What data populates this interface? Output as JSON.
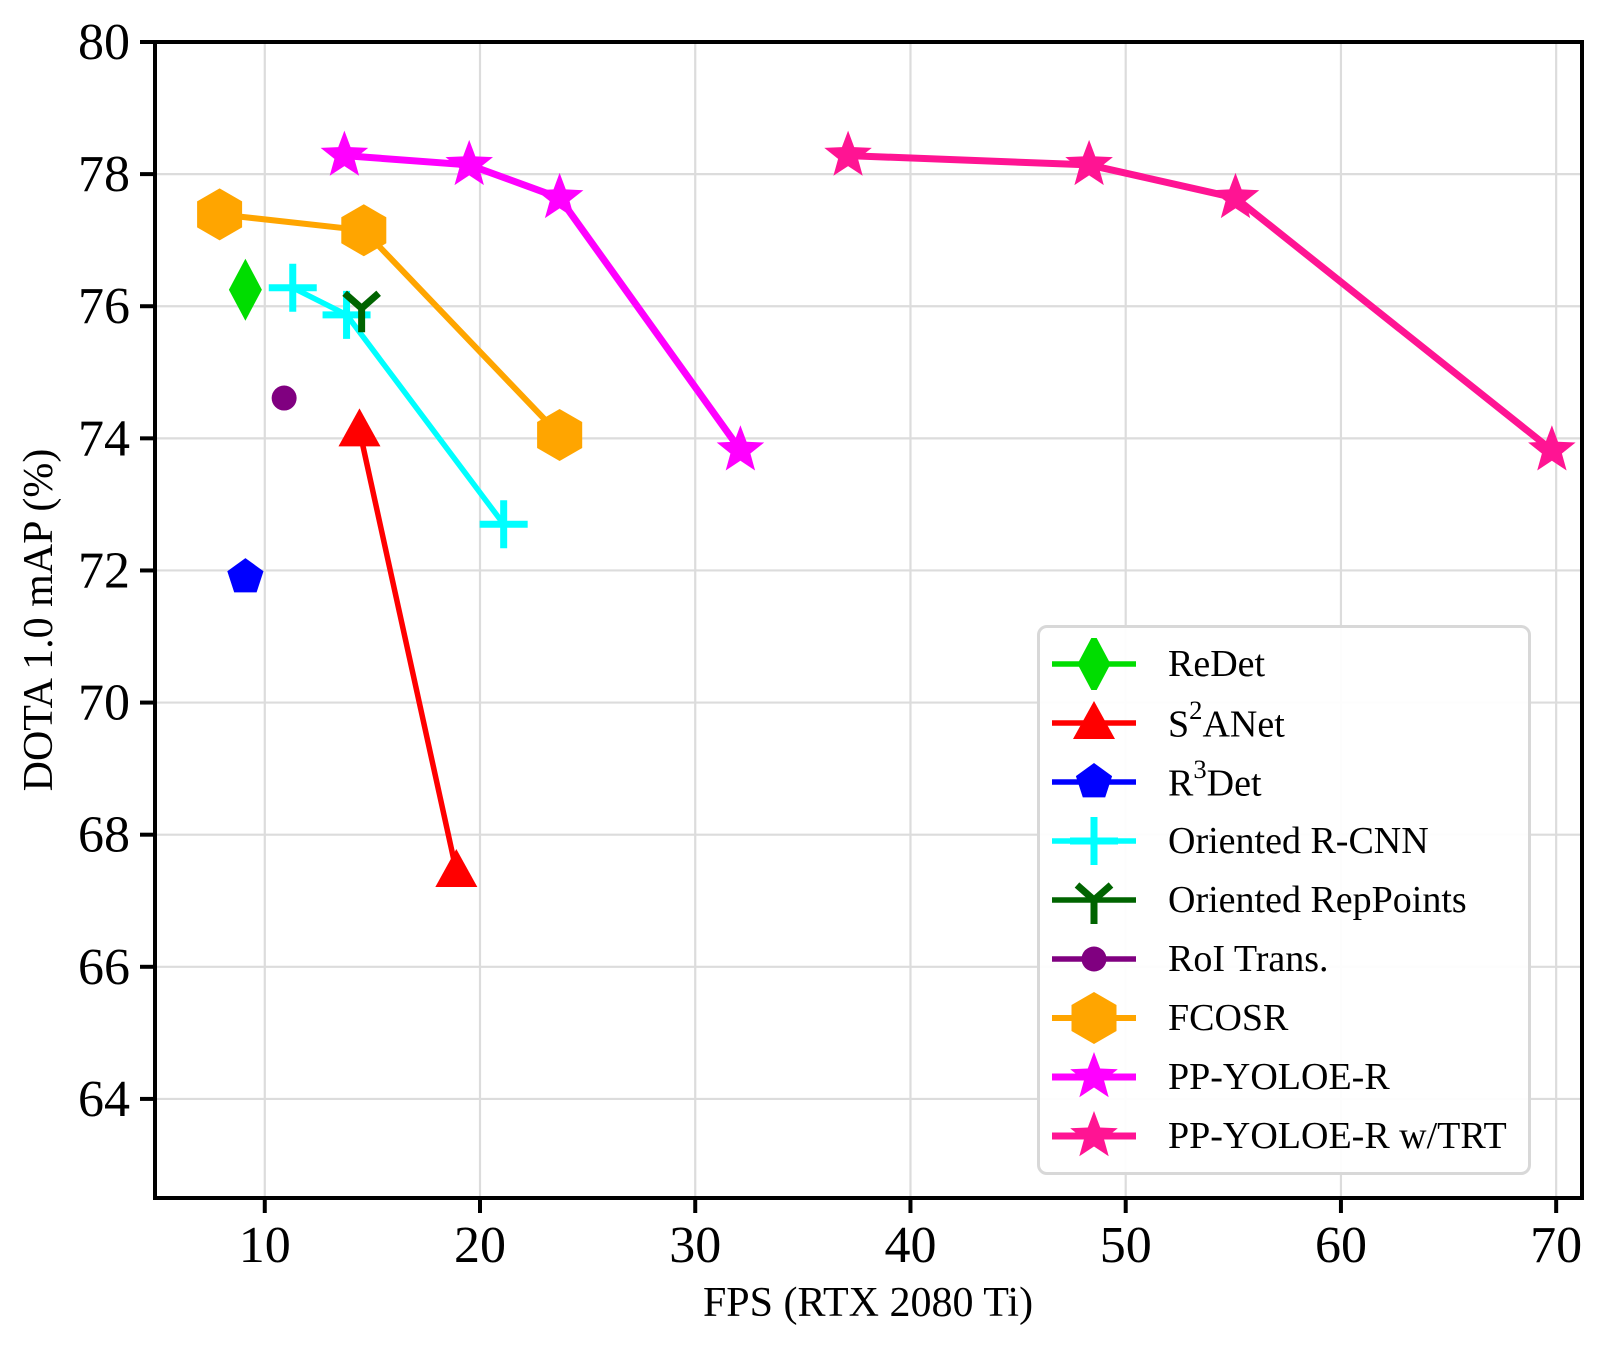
{
  "figure_title": "",
  "chart_data": {
    "type": "line",
    "title": "",
    "xlabel": "FPS (RTX 2080 Ti)",
    "ylabel": "DOTA 1.0 mAP (%)",
    "xlim": [
      4.9,
      71.2
    ],
    "ylim": [
      62.5,
      80
    ],
    "xticks": [
      10,
      20,
      30,
      40,
      50,
      60,
      70
    ],
    "yticks": [
      64,
      66,
      68,
      70,
      72,
      74,
      76,
      78,
      80
    ],
    "grid": true,
    "grid_color": "#dcdcdc",
    "spine_color": "#000000",
    "legend_position": "lower right",
    "series": [
      {
        "name": "ReDet",
        "label": "ReDet",
        "color": "#00dd00",
        "marker": "thin-diamond",
        "line_width": 5.5,
        "points": [
          [
            9.1,
            76.25
          ]
        ]
      },
      {
        "name": "S2ANet",
        "label": "S^2ANet",
        "color": "#ff0000",
        "marker": "triangle-up",
        "line_width": 5.5,
        "points": [
          [
            14.4,
            74.12
          ],
          [
            18.9,
            67.45
          ]
        ]
      },
      {
        "name": "R3Det",
        "label": "R^3Det",
        "color": "#0000ff",
        "marker": "pentagon",
        "line_width": 5.5,
        "points": [
          [
            9.1,
            71.9
          ]
        ]
      },
      {
        "name": "Oriented R-CNN",
        "label": "Oriented R-CNN",
        "color": "#00ffff",
        "marker": "plus",
        "line_width": 5.5,
        "points": [
          [
            11.3,
            76.28
          ],
          [
            13.8,
            75.87
          ],
          [
            21.1,
            72.7
          ]
        ]
      },
      {
        "name": "Oriented RepPoints",
        "label": "Oriented RepPoints",
        "color": "#006400",
        "marker": "tri-y",
        "line_width": 5.5,
        "points": [
          [
            14.5,
            75.97
          ]
        ]
      },
      {
        "name": "RoI Trans.",
        "label": "RoI Trans.",
        "color": "#800080",
        "marker": "circle",
        "line_width": 5.5,
        "points": [
          [
            10.9,
            74.61
          ]
        ]
      },
      {
        "name": "FCOSR",
        "label": "FCOSR",
        "color": "#ffa500",
        "marker": "hexagon",
        "line_width": 6,
        "points": [
          [
            7.9,
            77.39
          ],
          [
            14.6,
            77.15
          ],
          [
            23.7,
            74.05
          ]
        ]
      },
      {
        "name": "PP-YOLOE-R",
        "label": "PP-YOLOE-R",
        "color": "#ff00ff",
        "marker": "star",
        "line_width": 7,
        "points": [
          [
            13.7,
            78.28
          ],
          [
            19.5,
            78.14
          ],
          [
            23.7,
            77.64
          ],
          [
            32.1,
            73.82
          ]
        ]
      },
      {
        "name": "PP-YOLOE-R w/TRT",
        "label": "PP-YOLOE-R w/TRT",
        "color": "#ff1493",
        "marker": "star",
        "line_width": 7,
        "points": [
          [
            37.1,
            78.28
          ],
          [
            48.3,
            78.14
          ],
          [
            55.1,
            77.64
          ],
          [
            69.8,
            73.82
          ]
        ]
      }
    ]
  }
}
